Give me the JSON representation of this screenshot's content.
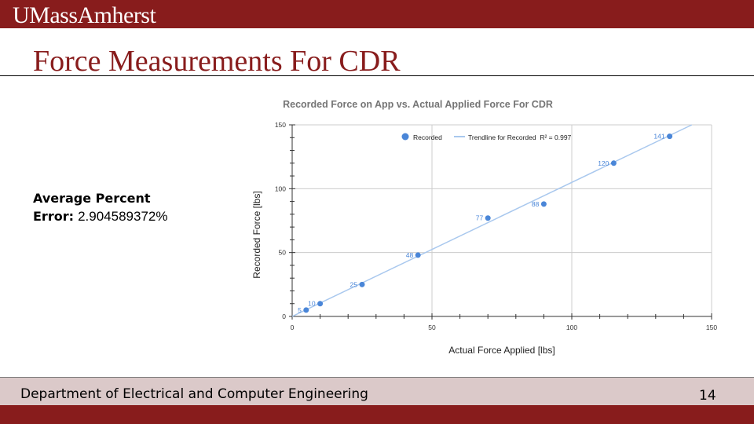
{
  "header": {
    "logo_text": "UMassAmherst"
  },
  "slide": {
    "title": "Force Measurements For CDR",
    "stat_label_line1": "Average Percent",
    "stat_label_line2": "Error:",
    "stat_value": "2.904589372%"
  },
  "footer": {
    "department": "Department of Electrical and Computer Engineering",
    "page_number": "14"
  },
  "colors": {
    "brand": "#881c1c",
    "footer_band": "#dbc9c9",
    "point": "#4a86d8",
    "trendline": "#a9c8ee",
    "grid": "#cccccc"
  },
  "chart_data": {
    "type": "scatter",
    "title": "Recorded Force on App vs. Actual Applied Force For CDR",
    "xlabel": "Actual Force Applied [lbs]",
    "ylabel": "Recorded Force [lbs]",
    "xlim": [
      0,
      150
    ],
    "ylim": [
      0,
      150
    ],
    "xticks": [
      "0",
      "50",
      "100",
      "150"
    ],
    "yticks": [
      "0",
      "50",
      "100",
      "150"
    ],
    "grid": true,
    "legend_position": "top",
    "legend": [
      "Recorded",
      "Trendline for Recorded  R² = 0.997"
    ],
    "series": [
      {
        "name": "Recorded",
        "x": [
          5,
          10,
          25,
          45,
          70,
          90,
          115,
          135
        ],
        "y": [
          5,
          10,
          25,
          48,
          77,
          88,
          120,
          141
        ],
        "labels": [
          "5",
          "10",
          "25",
          "48",
          "77",
          "88",
          "120",
          "141"
        ]
      }
    ],
    "trendline": {
      "name": "Trendline for Recorded",
      "r_squared": "R² = 0.997",
      "slope": 1.06,
      "intercept": -1.5
    }
  }
}
